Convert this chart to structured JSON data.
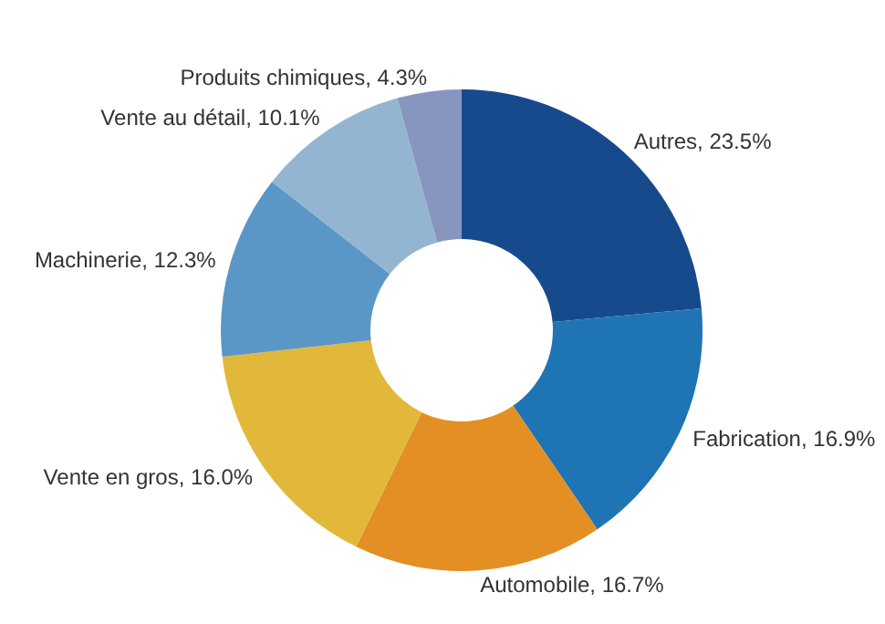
{
  "chart_data": {
    "type": "donut",
    "categories": [
      "Autres",
      "Fabrication",
      "Automobile",
      "Vente en gros",
      "Machinerie",
      "Vente au détail",
      "Produits chimiques"
    ],
    "values": [
      23.5,
      16.9,
      16.7,
      16.0,
      12.3,
      10.1,
      4.3
    ],
    "value_labels": [
      "23.5%",
      "16.9%",
      "16.7%",
      "16.0%",
      "12.3%",
      "10.1%",
      "4.3%"
    ],
    "colors": [
      "#174a8c",
      "#1f74b4",
      "#e38f24",
      "#e2b83a",
      "#5b97c6",
      "#93b5d2",
      "#8895bf"
    ],
    "legend": false
  }
}
